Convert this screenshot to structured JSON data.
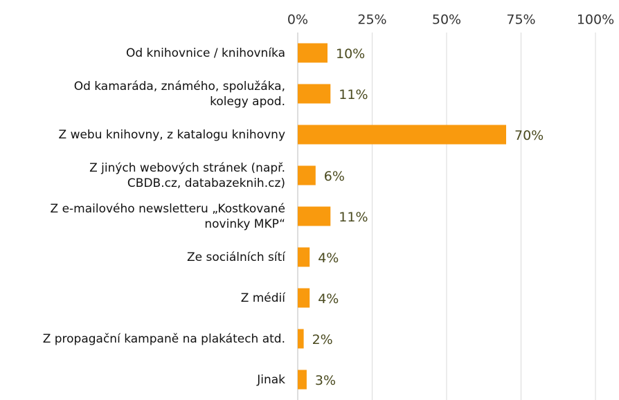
{
  "chart_data": {
    "type": "bar",
    "orientation": "horizontal",
    "categories": [
      "Od knihovnice / knihovníka",
      "Od kamaráda, známého, spolužáka,\nkolegy apod.",
      "Z webu knihovny, z katalogu knihovny",
      "Z jiných webových stránek (např.\nCBDB.cz, databazeknih.cz)",
      "Z e-mailového newsletteru „Kostkované\nnovinky MKP“",
      "Ze sociálních sítí",
      "Z médií",
      "Z propagační kampaně na plakátech atd.",
      "Jinak"
    ],
    "values": [
      10,
      11,
      70,
      6,
      11,
      4,
      4,
      2,
      3
    ],
    "value_labels": [
      "10%",
      "11%",
      "70%",
      "6%",
      "11%",
      "4%",
      "4%",
      "2%",
      "3%"
    ],
    "color": "#f99a0e",
    "xlim": [
      0,
      100
    ],
    "xticks": [
      {
        "value": 0,
        "label": "0%"
      },
      {
        "value": 25,
        "label": "25%"
      },
      {
        "value": 50,
        "label": "50%"
      },
      {
        "value": 75,
        "label": "75%"
      },
      {
        "value": 100,
        "label": "100%"
      }
    ],
    "grid": true
  }
}
